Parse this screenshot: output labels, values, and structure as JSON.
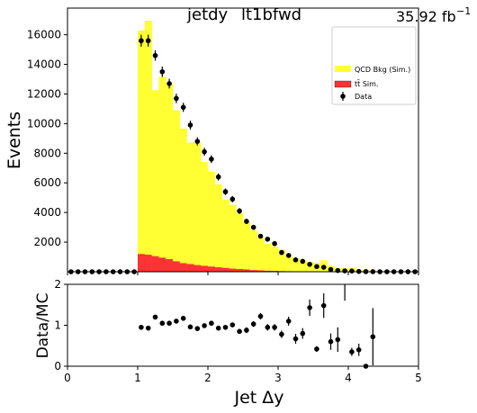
{
  "chart_data": [
    {
      "type": "bar",
      "title_left": "jetdy",
      "title_right": "lt1bfwd",
      "lumi_label": "35.92 fb",
      "lumi_exponent": "−1",
      "ylabel": "Events",
      "xlim": [
        0,
        5
      ],
      "ylim": [
        0,
        17800
      ],
      "x_ticks": [
        0,
        1,
        2,
        3,
        4,
        5
      ],
      "y_ticks": [
        2000,
        4000,
        6000,
        8000,
        10000,
        12000,
        14000,
        16000
      ],
      "bin_edges": [
        0.0,
        0.1,
        0.2,
        0.3,
        0.4,
        0.5,
        0.6,
        0.7,
        0.8,
        0.9,
        1.0,
        1.1,
        1.2,
        1.3,
        1.4,
        1.5,
        1.6,
        1.7,
        1.8,
        1.9,
        2.0,
        2.1,
        2.2,
        2.3,
        2.4,
        2.5,
        2.6,
        2.7,
        2.8,
        2.9,
        3.0,
        3.1,
        3.2,
        3.3,
        3.4,
        3.5,
        3.6,
        3.7,
        3.8,
        3.9,
        4.0,
        4.1,
        4.2,
        4.3,
        4.4,
        4.5,
        4.6,
        4.7,
        4.8,
        4.9,
        5.0
      ],
      "legend": [
        {
          "label": "QCD Bkg (Sim.)",
          "color": "#ffff33",
          "symbol": "box"
        },
        {
          "label": "tt̄ Sim.",
          "color": "#ff3333",
          "symbol": "box"
        },
        {
          "label": "Data",
          "color": "#000000",
          "symbol": "marker"
        }
      ],
      "legend_loc": "top-right",
      "series": [
        {
          "name": "QCD Bkg (Sim.)",
          "color": "#ffff33",
          "stacked": true,
          "values": [
            0,
            0,
            0,
            0,
            0,
            0,
            0,
            0,
            0,
            0,
            15100,
            15800,
            11200,
            12200,
            11900,
            10200,
            9100,
            8200,
            8300,
            7000,
            6400,
            5600,
            4600,
            4300,
            3800,
            3200,
            2700,
            2200,
            1800,
            1650,
            1450,
            1050,
            900,
            780,
            650,
            580,
            760,
            380,
            260,
            220,
            260,
            110,
            130,
            50,
            30,
            20,
            20,
            10,
            0,
            0
          ]
        },
        {
          "name": "tt̄ Sim.",
          "color": "#ff3333",
          "stacked": true,
          "values": [
            0,
            0,
            0,
            0,
            0,
            0,
            0,
            0,
            0,
            0,
            1200,
            1150,
            1050,
            950,
            850,
            700,
            580,
            520,
            450,
            400,
            350,
            300,
            260,
            210,
            180,
            150,
            110,
            90,
            70,
            60,
            45,
            35,
            25,
            20,
            15,
            10,
            8,
            5,
            4,
            3,
            2,
            1,
            1,
            0,
            0,
            0,
            0,
            0,
            0,
            0
          ]
        },
        {
          "name": "Data",
          "color": "#000000",
          "type": "errorbar",
          "x": [
            0.05,
            0.15,
            0.25,
            0.35,
            0.45,
            0.55,
            0.65,
            0.75,
            0.85,
            0.95,
            1.05,
            1.15,
            1.25,
            1.35,
            1.45,
            1.55,
            1.65,
            1.75,
            1.85,
            1.95,
            2.05,
            2.15,
            2.25,
            2.35,
            2.45,
            2.55,
            2.65,
            2.75,
            2.85,
            2.95,
            3.05,
            3.15,
            3.25,
            3.35,
            3.45,
            3.55,
            3.65,
            3.75,
            3.85,
            3.95,
            4.05,
            4.15,
            4.25,
            4.35,
            4.45,
            4.55,
            4.65,
            4.75,
            4.85,
            4.95
          ],
          "values": [
            0,
            0,
            0,
            0,
            0,
            0,
            0,
            0,
            0,
            0,
            15600,
            15600,
            14600,
            13500,
            12700,
            11700,
            11100,
            9900,
            8800,
            8100,
            7600,
            6400,
            5400,
            4900,
            4100,
            3400,
            3000,
            2400,
            2200,
            1900,
            1300,
            1100,
            800,
            700,
            500,
            350,
            300,
            150,
            80,
            60,
            50,
            20,
            10,
            5,
            0,
            0,
            0,
            0,
            0,
            0
          ],
          "errors": [
            0,
            0,
            0,
            0,
            0,
            0,
            0,
            0,
            0,
            0,
            400,
            400,
            350,
            350,
            330,
            320,
            310,
            300,
            280,
            270,
            260,
            240,
            220,
            210,
            200,
            180,
            170,
            150,
            150,
            140,
            110,
            100,
            90,
            80,
            70,
            60,
            55,
            40,
            30,
            25,
            22,
            14,
            10,
            7,
            0,
            0,
            0,
            0,
            0,
            0
          ]
        }
      ]
    },
    {
      "type": "scatter",
      "ylabel": "Data/MC",
      "xlabel_prefix": "Jet ",
      "xlabel_symbol": "Δy",
      "xlim": [
        0,
        5
      ],
      "ylim": [
        0,
        2
      ],
      "x_ticks": [
        0,
        1,
        2,
        3,
        4,
        5
      ],
      "y_ticks": [
        0,
        1,
        2
      ],
      "series": [
        {
          "name": "Data/MC",
          "color": "#000000",
          "x": [
            1.05,
            1.15,
            1.25,
            1.35,
            1.45,
            1.55,
            1.65,
            1.75,
            1.85,
            1.95,
            2.05,
            2.15,
            2.25,
            2.35,
            2.45,
            2.55,
            2.65,
            2.75,
            2.85,
            2.95,
            3.05,
            3.15,
            3.25,
            3.35,
            3.45,
            3.55,
            3.65,
            3.75,
            3.85,
            4.05,
            4.15,
            4.25,
            4.35
          ],
          "values": [
            0.95,
            0.93,
            1.2,
            1.05,
            1.05,
            1.1,
            1.17,
            0.96,
            0.92,
            0.99,
            1.05,
            0.93,
            0.95,
            1.01,
            0.85,
            0.88,
            1.03,
            1.22,
            0.95,
            0.95,
            0.78,
            1.1,
            0.67,
            0.8,
            1.43,
            0.42,
            1.48,
            0.6,
            0.65,
            0.35,
            0.4,
            0.0,
            0.72
          ],
          "errors": [
            0.03,
            0.03,
            0.04,
            0.04,
            0.04,
            0.04,
            0.04,
            0.04,
            0.04,
            0.04,
            0.05,
            0.05,
            0.05,
            0.05,
            0.06,
            0.07,
            0.07,
            0.08,
            0.08,
            0.08,
            0.09,
            0.11,
            0.12,
            0.13,
            0.2,
            0.07,
            0.3,
            0.2,
            0.3,
            0.1,
            0.15,
            0.0,
            0.7
          ]
        },
        {
          "name": "Data/MC overflow",
          "color": "#000000",
          "x": [
            3.95
          ],
          "values": [
            2.0
          ],
          "errors": [
            0.4
          ]
        }
      ]
    }
  ]
}
